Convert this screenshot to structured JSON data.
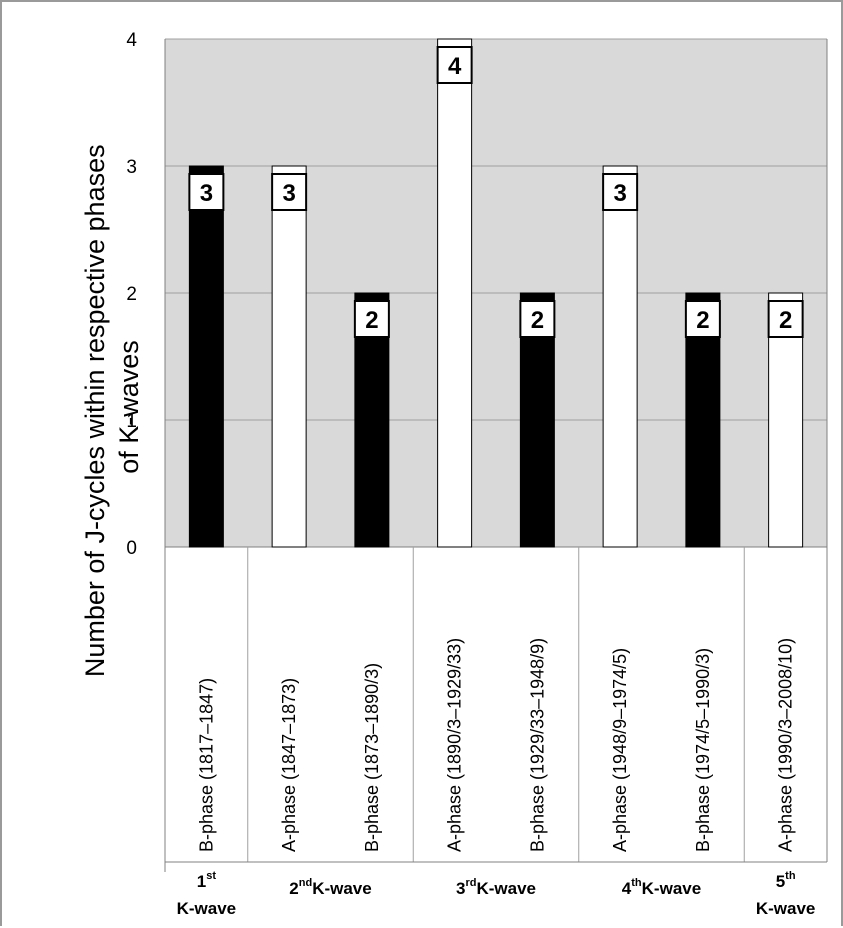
{
  "chart_data": {
    "type": "bar",
    "ylabel": "Number of J-cycles within respective phases of K-waves",
    "ylabel_lines": [
      "Number of J-cycles within respective phases",
      "of K-waves"
    ],
    "ylim": [
      0,
      4
    ],
    "yticks": [
      0,
      1,
      2,
      3,
      4
    ],
    "grid": true,
    "plot_background": "#d9d9d9",
    "gridline_color": "#a0a0a0",
    "categories": [
      "B-phase (1817–1847)",
      "A-phase (1847–1873)",
      "B-phase (1873–1890/3)",
      "A-phase (1890/3–1929/33)",
      "B-phase (1929/33–1948/9)",
      "A-phase (1948/9–1974/5)",
      "B-phase (1974/5–1990/3)",
      "A-phase (1990/3–2008/10)"
    ],
    "values": [
      3,
      3,
      2,
      4,
      2,
      3,
      2,
      2
    ],
    "data_labels": [
      "3",
      "3",
      "2",
      "4",
      "2",
      "3",
      "2",
      "2"
    ],
    "bar_colors": [
      "#000000",
      "#ffffff",
      "#000000",
      "#ffffff",
      "#000000",
      "#ffffff",
      "#000000",
      "#ffffff"
    ],
    "groups": [
      {
        "lines": [
          {
            "base": "1",
            "sup": "st",
            "rest": ""
          },
          {
            "base": "K-wave",
            "sup": "",
            "rest": ""
          }
        ],
        "span": [
          0,
          0
        ]
      },
      {
        "lines": [
          {
            "base": "2",
            "sup": "nd",
            "rest": "K-wave"
          }
        ],
        "span": [
          1,
          2
        ]
      },
      {
        "lines": [
          {
            "base": "3",
            "sup": "rd",
            "rest": "K-wave"
          }
        ],
        "span": [
          3,
          4
        ]
      },
      {
        "lines": [
          {
            "base": "4",
            "sup": "th",
            "rest": "K-wave"
          }
        ],
        "span": [
          5,
          6
        ]
      },
      {
        "lines": [
          {
            "base": "5",
            "sup": "th",
            "rest": ""
          },
          {
            "base": "K-wave",
            "sup": "",
            "rest": ""
          }
        ],
        "span": [
          7,
          7
        ]
      }
    ]
  }
}
